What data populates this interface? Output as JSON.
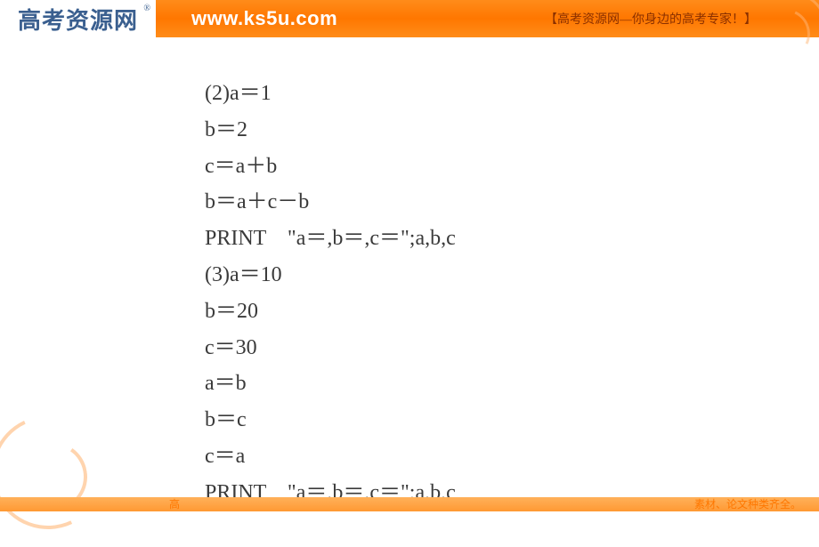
{
  "header": {
    "logo_text": "高考资源网",
    "logo_r": "®",
    "url": "www.ks5u.com",
    "tagline": "【高考资源网—你身边的高考专家！】"
  },
  "content": {
    "lines": [
      "(2)a＝1",
      "b＝2",
      "c＝a＋b",
      "b＝a＋c－b",
      "PRINT　\"a＝,b＝,c＝\";a,b,c",
      "(3)a＝10",
      "b＝20",
      "c＝30",
      "a＝b",
      "b＝c",
      "c＝a",
      "PRINT　\"a＝,b＝,c＝\";a,b,c"
    ]
  },
  "footer": {
    "left": "高",
    "right": "素材、论文种类齐全。"
  },
  "colors": {
    "header_bg": "#ff7700",
    "logo_text": "#3a5f8f",
    "content_text": "#3a3a3a",
    "swirl": "#ffb87a"
  }
}
